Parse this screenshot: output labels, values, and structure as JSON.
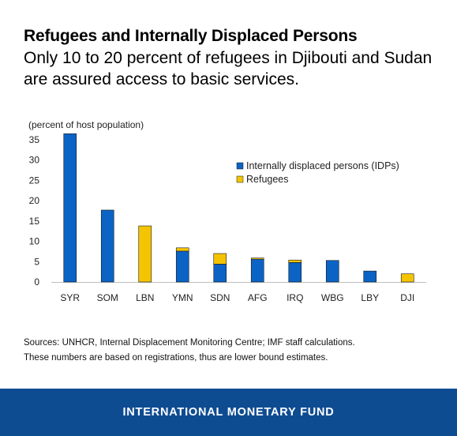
{
  "header": {
    "title": "Refugees and Internally Displaced Persons",
    "subtitle": "Only 10 to 20 percent of refugees in Djibouti and Sudan are assured access to basic services."
  },
  "chart_data": {
    "type": "bar",
    "stacked": true,
    "ylabel": "(percent of host population)",
    "ylim": [
      0,
      35
    ],
    "yticks": [
      0,
      5,
      10,
      15,
      20,
      25,
      30,
      35
    ],
    "grid": false,
    "legend_position": "top-right",
    "categories": [
      "SYR",
      "SOM",
      "LBN",
      "YMN",
      "SDN",
      "AFG",
      "IRQ",
      "WBG",
      "LBY",
      "DJI"
    ],
    "series": [
      {
        "name": "Internally displaced persons (IDPs)",
        "color": "#0b63c5",
        "values": [
          36.5,
          17.7,
          0,
          7.6,
          4.4,
          5.6,
          4.8,
          5.3,
          2.7,
          0
        ]
      },
      {
        "name": "Refugees",
        "color": "#f5c400",
        "values": [
          0,
          0,
          13.8,
          0.8,
          2.6,
          0.3,
          0.6,
          0,
          0,
          2.0
        ]
      }
    ]
  },
  "notes": {
    "sources": "Sources: UNHCR, Internal Displacement Monitoring Centre; IMF staff calculations.",
    "remark": "These numbers are based on registrations, thus are lower bound estimates."
  },
  "footer": {
    "label": "INTERNATIONAL MONETARY FUND"
  }
}
